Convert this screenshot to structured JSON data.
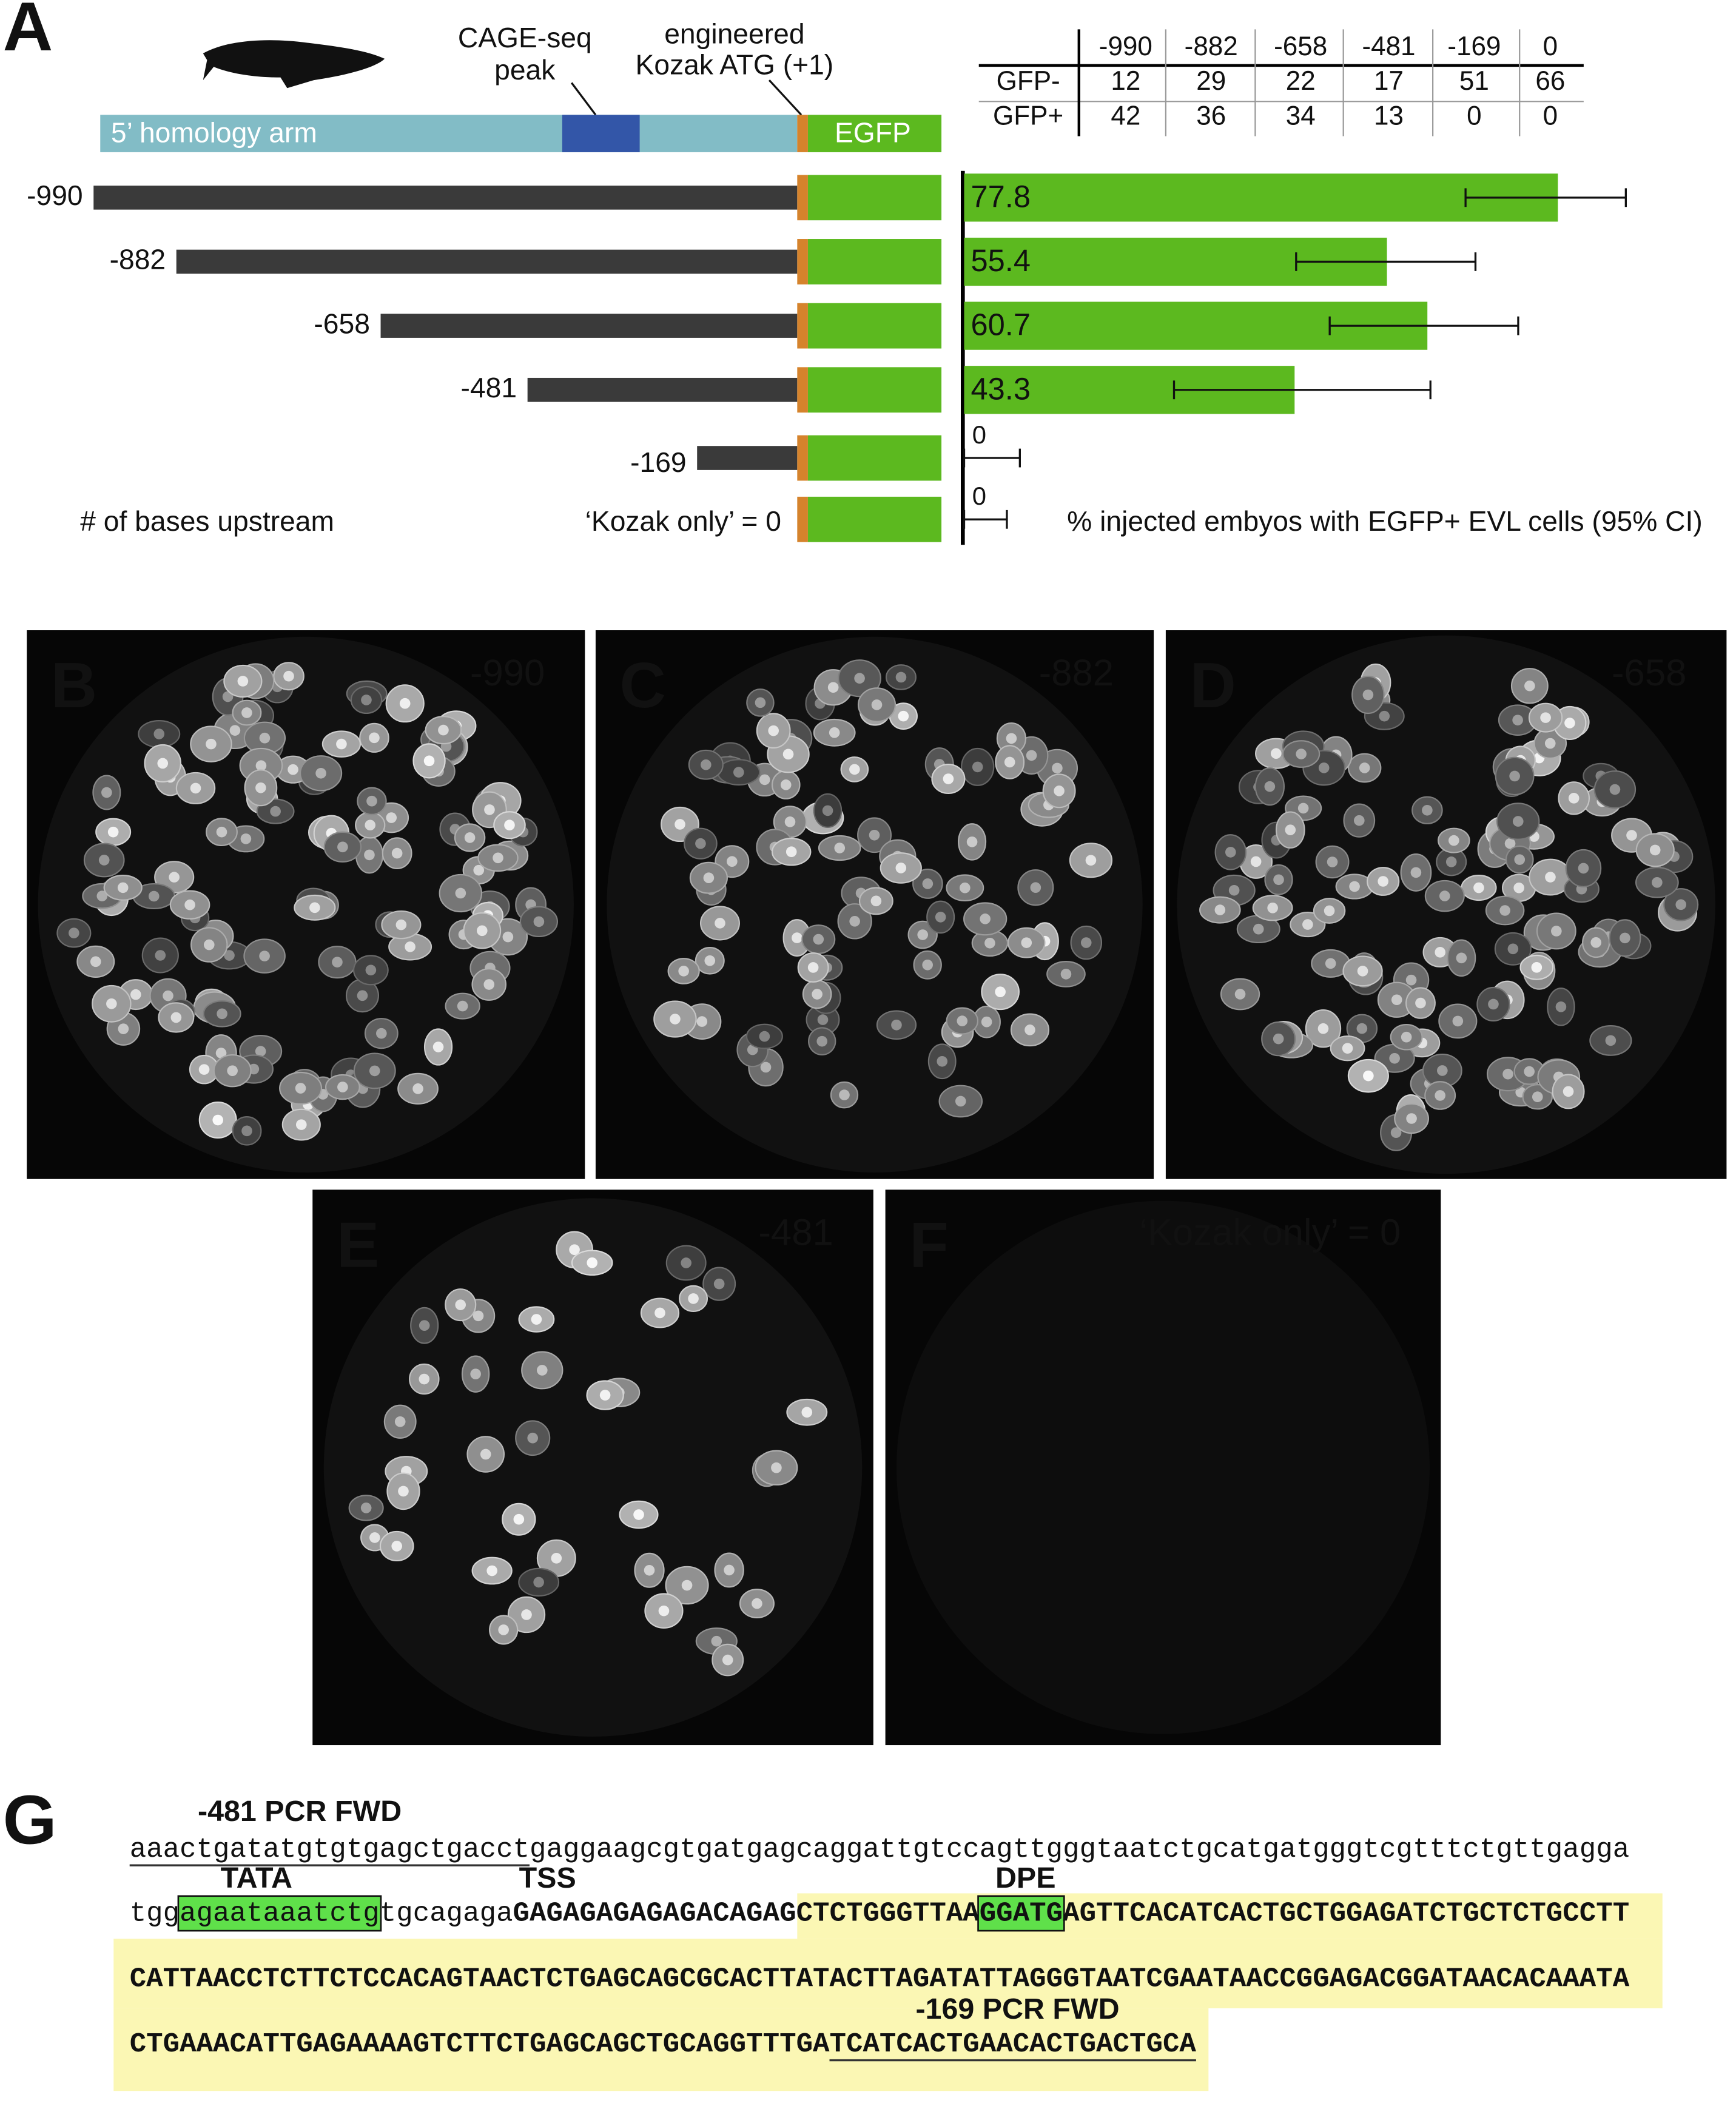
{
  "panel_a_letter": "A",
  "panel_g_letter": "G",
  "construct": {
    "homology_arm": "5’ homology arm",
    "egfp": "EGFP",
    "cage_label": [
      "CAGE-seq",
      "peak"
    ],
    "kozak_label": [
      "engineered",
      "Kozak ATG (+1)"
    ],
    "axis_note": "# of bases upstream"
  },
  "table": {
    "columns": [
      "-990",
      "-882",
      "-658",
      "-481",
      "-169",
      "0"
    ],
    "rows": [
      {
        "label": "GFP-",
        "values": [
          12,
          29,
          22,
          17,
          51,
          66
        ]
      },
      {
        "label": "GFP+",
        "values": [
          42,
          36,
          34,
          13,
          0,
          0
        ]
      }
    ]
  },
  "chart_data": {
    "type": "bar",
    "orientation": "horizontal",
    "x_label": "% injected embyos with EGFP+ EVL cells (95% CI)",
    "categories": [
      "-990",
      "-882",
      "-658",
      "-481",
      "-169",
      "‘Kozak only’ = 0"
    ],
    "values": [
      77.8,
      55.4,
      60.7,
      43.3,
      0,
      0
    ],
    "ci_low": [
      65.7,
      43.5,
      47.9,
      27.5,
      0,
      0
    ],
    "ci_high": [
      86.7,
      67.0,
      72.6,
      61.1,
      7.3,
      5.6
    ],
    "xlim": [
      0,
      95
    ],
    "color": "#5cb91f"
  },
  "panels": [
    {
      "letter": "B",
      "label": "-990"
    },
    {
      "letter": "C",
      "label": "-882"
    },
    {
      "letter": "D",
      "label": "-658"
    },
    {
      "letter": "E",
      "label": "-481"
    },
    {
      "letter": "F",
      "label": "‘Kozak only’ = 0"
    }
  ],
  "sequence": {
    "primer_481": "-481 PCR FWD",
    "tata": "TATA",
    "tss": "TSS",
    "dpe": "DPE",
    "primer_169": "-169 PCR FWD",
    "lines": [
      [
        "aaactgatatgtgtgagctgacct",
        "gaggaagcgtgatgagcaggattgtccagttgggtaatctgcatgatgggtcgtttctgttgagga"
      ],
      [
        "tgg",
        "agaataaatctg",
        "tgcagaga",
        "GAGAGAGAGAGACAGAG",
        "CTCTGGGTTAA",
        "GGATG",
        "AGTTCACATCACTGCTGGAGATCTGCTCTGCCTT"
      ],
      [
        "CATTAACCTCTTCTCCACAGTAACTCTGAGCAGCGCACTTATACTTAGATATTAGGGTAATCGAATAACCGGAGACGGATAACACAAATA"
      ],
      [
        "CTGAAACATTGAGAAAAGTCTTCTGAGCAGCTGCAGGTTTGA",
        "TCATCACTGAACACTGACTGCA"
      ]
    ]
  }
}
